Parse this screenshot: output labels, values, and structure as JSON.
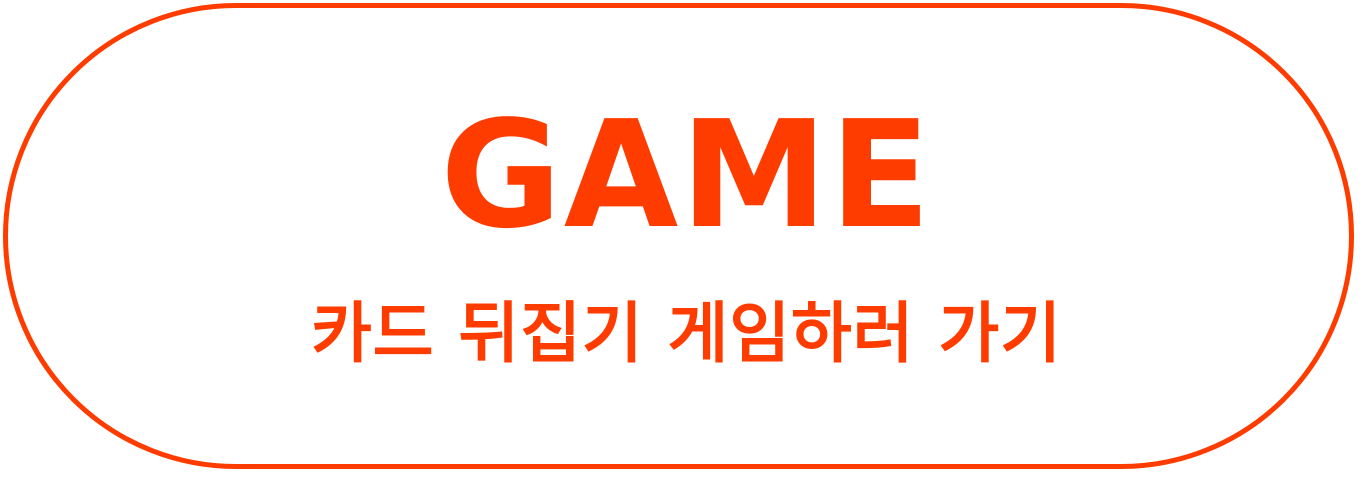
{
  "button": {
    "title": "GAME",
    "subtitle": "카드 뒤집기 게임하러 가기"
  },
  "colors": {
    "accent": "#ff3c00",
    "background": "#ffffff"
  }
}
